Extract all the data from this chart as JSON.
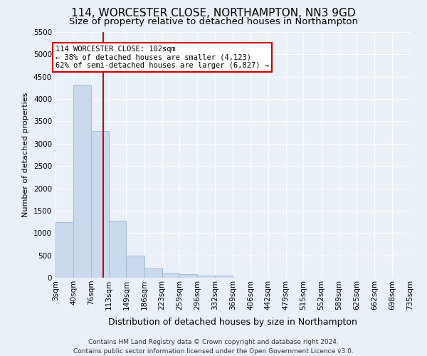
{
  "title": "114, WORCESTER CLOSE, NORTHAMPTON, NN3 9GD",
  "subtitle": "Size of property relative to detached houses in Northampton",
  "xlabel": "Distribution of detached houses by size in Northampton",
  "ylabel": "Number of detached properties",
  "bar_color": "#c9d9ee",
  "bar_edge_color": "#a0bcd8",
  "background_color": "#eaf0f8",
  "grid_color": "#ffffff",
  "vline_x": 102,
  "vline_color": "#cc0000",
  "annotation_text": "114 WORCESTER CLOSE: 102sqm\n← 38% of detached houses are smaller (4,123)\n62% of semi-detached houses are larger (6,827) →",
  "annotation_box_color": "#ffffff",
  "annotation_box_edge": "#cc0000",
  "bin_edges": [
    3,
    40,
    76,
    113,
    149,
    186,
    223,
    259,
    296,
    332,
    369,
    406,
    442,
    479,
    515,
    552,
    589,
    625,
    662,
    698,
    735
  ],
  "bin_labels": [
    "3sqm",
    "40sqm",
    "76sqm",
    "113sqm",
    "149sqm",
    "186sqm",
    "223sqm",
    "259sqm",
    "296sqm",
    "332sqm",
    "369sqm",
    "406sqm",
    "442sqm",
    "479sqm",
    "515sqm",
    "552sqm",
    "589sqm",
    "625sqm",
    "662sqm",
    "698sqm",
    "735sqm"
  ],
  "bar_heights": [
    1250,
    4320,
    3290,
    1280,
    490,
    215,
    90,
    75,
    55,
    45,
    0,
    0,
    0,
    0,
    0,
    0,
    0,
    0,
    0,
    0
  ],
  "ylim": [
    0,
    5500
  ],
  "yticks": [
    0,
    500,
    1000,
    1500,
    2000,
    2500,
    3000,
    3500,
    4000,
    4500,
    5000,
    5500
  ],
  "footer": "Contains HM Land Registry data © Crown copyright and database right 2024.\nContains public sector information licensed under the Open Government Licence v3.0.",
  "title_fontsize": 11,
  "subtitle_fontsize": 9.5,
  "xlabel_fontsize": 9,
  "ylabel_fontsize": 8,
  "tick_fontsize": 7.5,
  "footer_fontsize": 6.5,
  "annotation_fontsize": 7.5
}
